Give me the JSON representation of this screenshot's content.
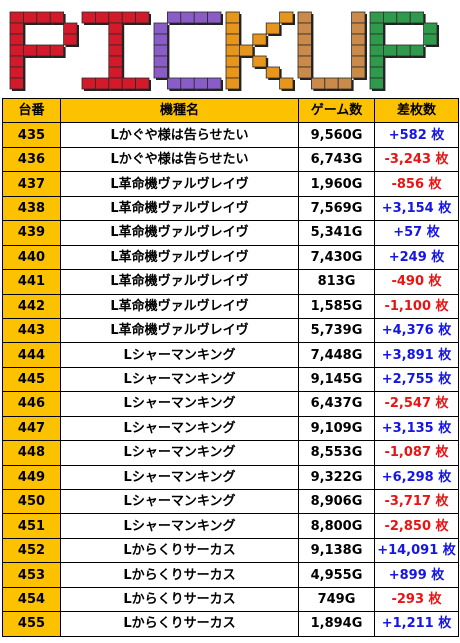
{
  "banner": {
    "title": "PICKUP",
    "letter_colors": [
      "#d21a2a",
      "#d21a2a",
      "#8a5cc8",
      "#e8951c",
      "#c98a4a",
      "#2f9a4c"
    ]
  },
  "table": {
    "headers": [
      "台番",
      "機種名",
      "ゲーム数",
      "差枚数"
    ],
    "header_color": "#fcc200",
    "plus_color": "#1515e6",
    "minus_color": "#e81414",
    "rows": [
      {
        "no": "435",
        "model": "Lかぐや様は告らせたい",
        "games": "9,560G",
        "diff": "+582 枚",
        "sign": "plus"
      },
      {
        "no": "436",
        "model": "Lかぐや様は告らせたい",
        "games": "6,743G",
        "diff": "-3,243 枚",
        "sign": "minus"
      },
      {
        "no": "437",
        "model": "L革命機ヴァルヴレイヴ",
        "games": "1,960G",
        "diff": "-856 枚",
        "sign": "minus"
      },
      {
        "no": "438",
        "model": "L革命機ヴァルヴレイヴ",
        "games": "7,569G",
        "diff": "+3,154 枚",
        "sign": "plus"
      },
      {
        "no": "439",
        "model": "L革命機ヴァルヴレイヴ",
        "games": "5,341G",
        "diff": "+57 枚",
        "sign": "plus"
      },
      {
        "no": "440",
        "model": "L革命機ヴァルヴレイヴ",
        "games": "7,430G",
        "diff": "+249 枚",
        "sign": "plus"
      },
      {
        "no": "441",
        "model": "L革命機ヴァルヴレイヴ",
        "games": "813G",
        "diff": "-490 枚",
        "sign": "minus"
      },
      {
        "no": "442",
        "model": "L革命機ヴァルヴレイヴ",
        "games": "1,585G",
        "diff": "-1,100 枚",
        "sign": "minus"
      },
      {
        "no": "443",
        "model": "L革命機ヴァルヴレイヴ",
        "games": "5,739G",
        "diff": "+4,376 枚",
        "sign": "plus"
      },
      {
        "no": "444",
        "model": "Lシャーマンキング",
        "games": "7,448G",
        "diff": "+3,891 枚",
        "sign": "plus"
      },
      {
        "no": "445",
        "model": "Lシャーマンキング",
        "games": "9,145G",
        "diff": "+2,755 枚",
        "sign": "plus"
      },
      {
        "no": "446",
        "model": "Lシャーマンキング",
        "games": "6,437G",
        "diff": "-2,547 枚",
        "sign": "minus"
      },
      {
        "no": "447",
        "model": "Lシャーマンキング",
        "games": "9,109G",
        "diff": "+3,135 枚",
        "sign": "plus"
      },
      {
        "no": "448",
        "model": "Lシャーマンキング",
        "games": "8,553G",
        "diff": "-1,087 枚",
        "sign": "minus"
      },
      {
        "no": "449",
        "model": "Lシャーマンキング",
        "games": "9,322G",
        "diff": "+6,298 枚",
        "sign": "plus"
      },
      {
        "no": "450",
        "model": "Lシャーマンキング",
        "games": "8,906G",
        "diff": "-3,717 枚",
        "sign": "minus"
      },
      {
        "no": "451",
        "model": "Lシャーマンキング",
        "games": "8,800G",
        "diff": "-2,850 枚",
        "sign": "minus"
      },
      {
        "no": "452",
        "model": "Lからくりサーカス",
        "games": "9,138G",
        "diff": "+14,091 枚",
        "sign": "plus"
      },
      {
        "no": "453",
        "model": "Lからくりサーカス",
        "games": "4,955G",
        "diff": "+899 枚",
        "sign": "plus"
      },
      {
        "no": "454",
        "model": "Lからくりサーカス",
        "games": "749G",
        "diff": "-293 枚",
        "sign": "minus"
      },
      {
        "no": "455",
        "model": "Lからくりサーカス",
        "games": "1,894G",
        "diff": "+1,211 枚",
        "sign": "plus"
      }
    ]
  }
}
